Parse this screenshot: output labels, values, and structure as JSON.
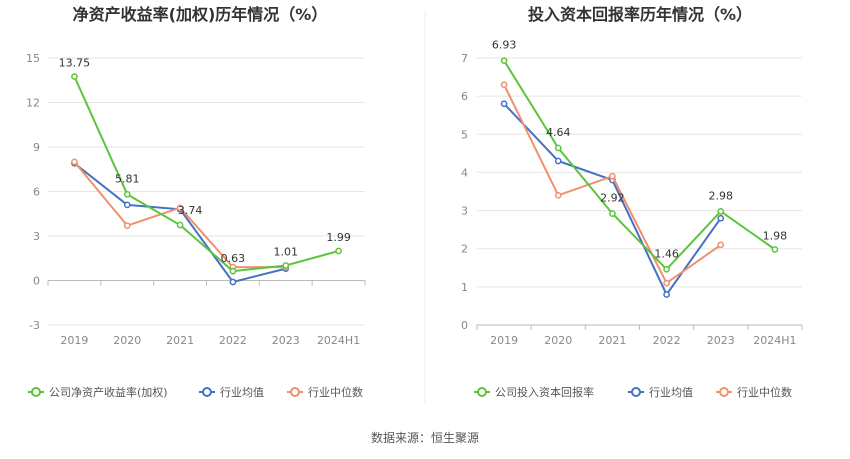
{
  "source": "数据来源：恒生聚源",
  "colors": {
    "company": "#5cc43c",
    "avg": "#4472c4",
    "median": "#f0906c",
    "grid": "#e6e6e6",
    "axis": "#bbbbbb"
  },
  "chart_data": [
    {
      "type": "line",
      "title": "净资产收益率(加权)历年情况（%）",
      "categories": [
        "2019",
        "2020",
        "2021",
        "2022",
        "2023",
        "2024H1"
      ],
      "yticks": [
        "15",
        "12",
        "9",
        "6",
        "3",
        "0",
        "-3"
      ],
      "ylim": [
        -3,
        15
      ],
      "grid": true,
      "legend_position": "bottom",
      "series": [
        {
          "name": "公司净资产收益率(加权)",
          "key": "company",
          "values": [
            13.75,
            5.81,
            3.74,
            0.63,
            1.01,
            1.99
          ],
          "labels": [
            "13.75",
            "5.81",
            "3.74",
            "0.63",
            "1.01",
            "1.99"
          ]
        },
        {
          "name": "行业均值",
          "key": "avg",
          "values": [
            7.9,
            5.1,
            4.8,
            -0.1,
            0.8,
            null
          ]
        },
        {
          "name": "行业中位数",
          "key": "median",
          "values": [
            8.0,
            3.7,
            4.9,
            0.9,
            0.9,
            null
          ]
        }
      ]
    },
    {
      "type": "line",
      "title": "投入资本回报率历年情况（%）",
      "categories": [
        "2019",
        "2020",
        "2021",
        "2022",
        "2023",
        "2024H1"
      ],
      "yticks": [
        "7",
        "6",
        "5",
        "4",
        "3",
        "2",
        "1",
        "0"
      ],
      "ylim": [
        0,
        7
      ],
      "grid": true,
      "legend_position": "bottom",
      "series": [
        {
          "name": "公司投入资本回报率",
          "key": "company",
          "values": [
            6.93,
            4.64,
            2.92,
            1.46,
            2.98,
            1.98
          ],
          "labels": [
            "6.93",
            "4.64",
            "2.92",
            "1.46",
            "2.98",
            "1.98"
          ]
        },
        {
          "name": "行业均值",
          "key": "avg",
          "values": [
            5.8,
            4.3,
            3.8,
            0.8,
            2.8,
            null
          ]
        },
        {
          "name": "行业中位数",
          "key": "median",
          "values": [
            6.3,
            3.4,
            3.9,
            1.1,
            2.1,
            null
          ]
        }
      ]
    }
  ]
}
